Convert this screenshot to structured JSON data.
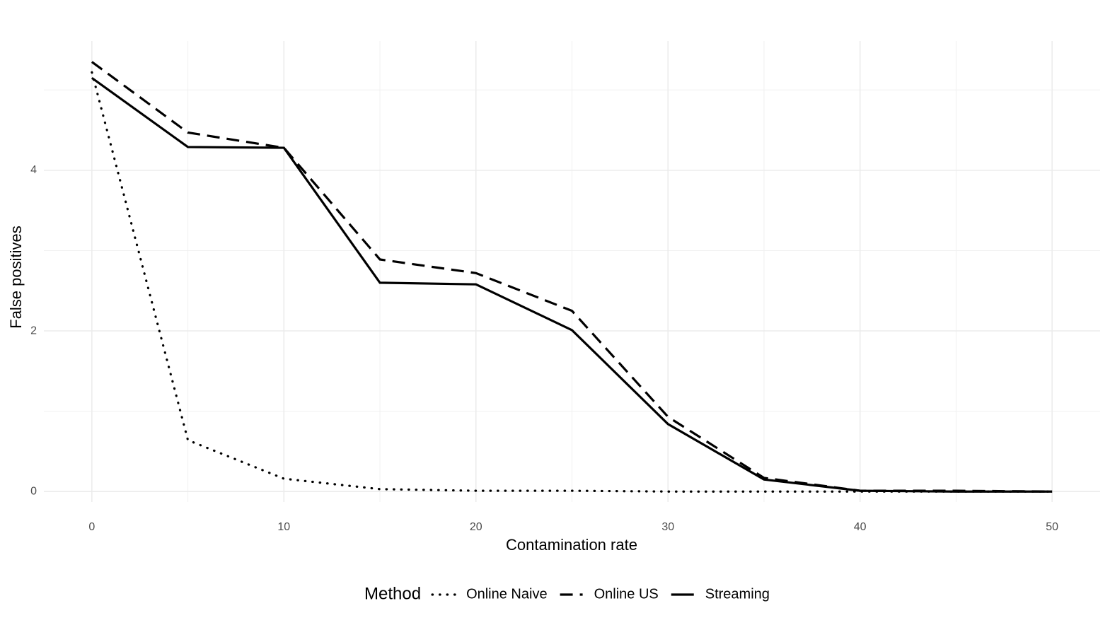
{
  "chart_data": {
    "type": "line",
    "x_label": "Contamination rate",
    "y_label": "False positives",
    "x": [
      0,
      5,
      10,
      15,
      20,
      25,
      30,
      35,
      40,
      45,
      50
    ],
    "series": [
      {
        "name": "Online Naive",
        "color": "#000000",
        "dash": "dotted",
        "values": [
          5.22,
          0.64,
          0.16,
          0.03,
          0.01,
          0.01,
          0,
          0,
          0,
          0,
          0
        ]
      },
      {
        "name": "Online US",
        "color": "#000000",
        "dash": "dashed",
        "values": [
          5.35,
          4.47,
          4.28,
          2.89,
          2.72,
          2.25,
          0.93,
          0.17,
          0.01,
          0.01,
          0
        ]
      },
      {
        "name": "Streaming",
        "color": "#000000",
        "dash": "solid",
        "values": [
          5.15,
          4.29,
          4.28,
          2.6,
          2.58,
          2.01,
          0.84,
          0.15,
          0.01,
          0,
          0
        ]
      }
    ],
    "xlim": [
      -2.5,
      52.5
    ],
    "ylim": [
      -0.13,
      5.61
    ],
    "xticks": [
      0,
      10,
      20,
      30,
      40,
      50
    ],
    "yticks": [
      0,
      2,
      4
    ],
    "x_minor_ticks": [
      5,
      15,
      25,
      35,
      45
    ],
    "y_minor_ticks": [
      1,
      3,
      5
    ],
    "grid": true,
    "legend_title": "Method",
    "legend_position": "bottom"
  }
}
